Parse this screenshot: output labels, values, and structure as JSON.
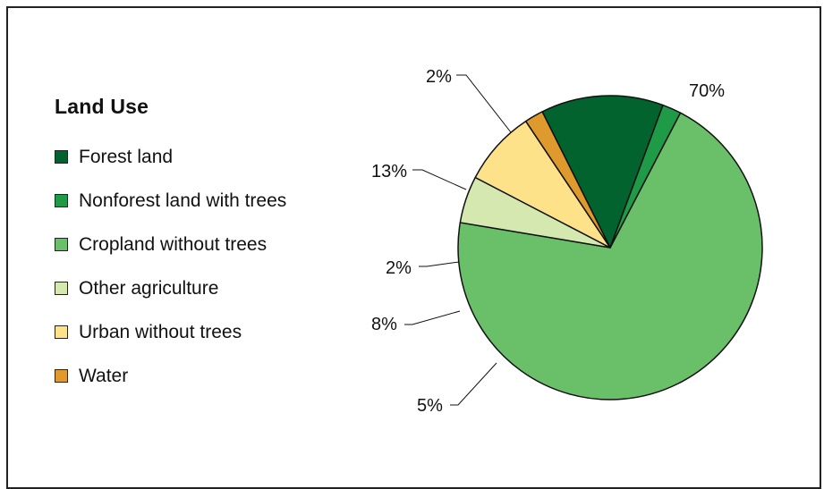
{
  "chart_data": {
    "type": "pie",
    "legend_title": "Land Use",
    "legend_position": "left",
    "slices": [
      {
        "name": "Cropland without trees",
        "value": 70,
        "label": "70%",
        "color": "#6abf69"
      },
      {
        "name": "Other agriculture",
        "value": 5,
        "label": "5%",
        "color": "#d4e8b0"
      },
      {
        "name": "Urban without trees",
        "value": 8,
        "label": "8%",
        "color": "#fde28a"
      },
      {
        "name": "Water",
        "value": 2,
        "label": "2%",
        "color": "#de9a2c"
      },
      {
        "name": "Forest land",
        "value": 13,
        "label": "13%",
        "color": "#03632f"
      },
      {
        "name": "Nonforest land with trees",
        "value": 2,
        "label": "2%",
        "color": "#1f9a47"
      }
    ],
    "legend": [
      {
        "label": "Forest land",
        "color": "#03632f"
      },
      {
        "label": "Nonforest land with trees",
        "color": "#1f9a47"
      },
      {
        "label": "Cropland without trees",
        "color": "#6abf69"
      },
      {
        "label": "Other agriculture",
        "color": "#d4e8b0"
      },
      {
        "label": "Urban without trees",
        "color": "#fde28a"
      },
      {
        "label": "Water",
        "color": "#de9a2c"
      }
    ]
  }
}
